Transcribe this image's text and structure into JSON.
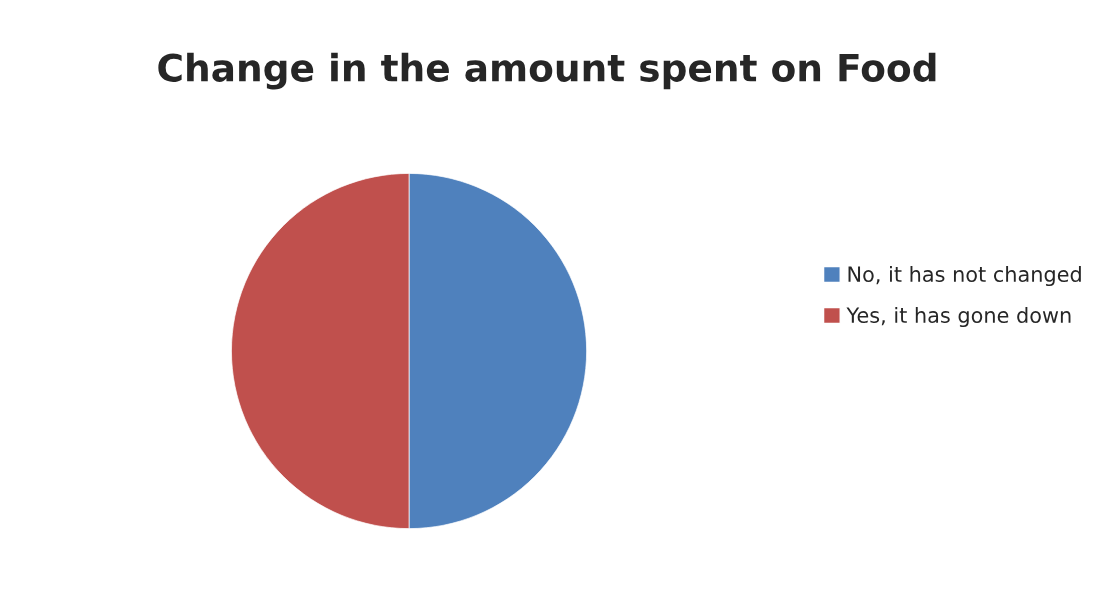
{
  "chart_data": {
    "type": "pie",
    "title": "Change in the amount spent on Food",
    "categories": [
      "No, it has not changed",
      "Yes, it has gone down"
    ],
    "values": [
      50,
      50
    ],
    "colors": [
      "#4f81bd",
      "#c0504d"
    ],
    "legend": "right"
  }
}
